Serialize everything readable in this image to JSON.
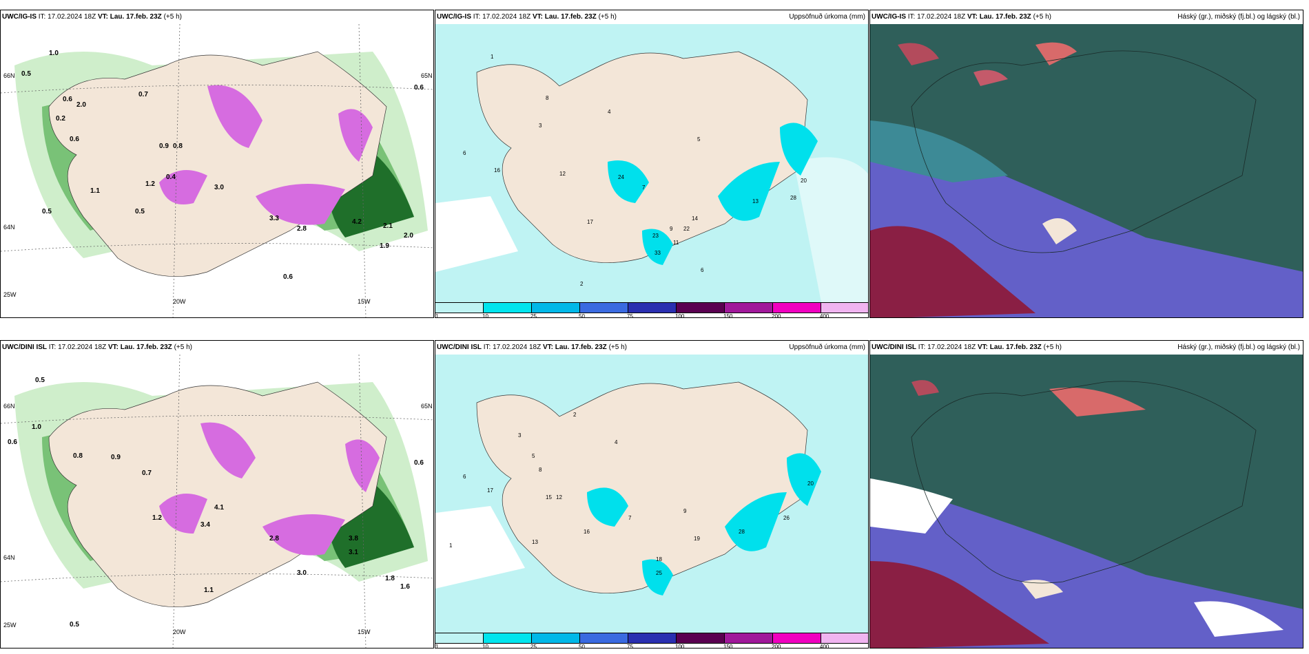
{
  "legend_scale": {
    "ticks": [
      "1",
      "10",
      "25",
      "50",
      "75",
      "100",
      "150",
      "200",
      "400"
    ],
    "colors": [
      "#b8f4f4",
      "#00e5ee",
      "#00b8e8",
      "#3a6ae0",
      "#2a2fb0",
      "#5a0050",
      "#a0189a",
      "#f000c0",
      "#f0b4f0"
    ]
  },
  "colors": {
    "land": "#f3e6d8",
    "precip_light": "#bff3f3",
    "precip_mid": "#00e0ec",
    "green_light": "#cfeecb",
    "green_mid": "#79c277",
    "green_dark": "#1f6f2a",
    "magenta": "#d66ce0",
    "cloud_teal": "#2f5f5a",
    "cloud_blue": "#6360c8",
    "cloud_red": "#8a1f44"
  },
  "panels": [
    {
      "model": "UWC/IG-IS",
      "it_label": "IT:",
      "it_value": "17.02.2024 18Z",
      "vt_label": "VT:",
      "vt_value": "Lau. 17.feb. 23Z",
      "lead": "(+5 h)",
      "right_title": "",
      "axis_labels": [
        "66N",
        "65N",
        "64N",
        "20W",
        "15W",
        "25W"
      ],
      "values": [
        "0.5",
        "0.7",
        "1.0",
        "2.0",
        "0.6",
        "0.2",
        "1.2",
        "0.6",
        "0.9",
        "0.8",
        "3.0",
        "3.3",
        "2.8",
        "4.2",
        "2.1",
        "1.9",
        "2.0",
        "0.6",
        "0.6",
        "0.5",
        "1.1",
        "0.5",
        "0.4"
      ]
    },
    {
      "model": "UWC/IG-IS",
      "it_label": "IT:",
      "it_value": "17.02.2024 18Z",
      "vt_label": "VT:",
      "vt_value": "Lau. 17.feb. 23Z",
      "lead": "(+5 h)",
      "right_title": "Uppsöfnuð úrkoma (mm)",
      "values": [
        "1",
        "3",
        "5",
        "6",
        "8",
        "12",
        "16",
        "17",
        "13",
        "20",
        "24",
        "28",
        "22",
        "11",
        "14",
        "23",
        "33",
        "6",
        "2",
        "9",
        "4",
        "7"
      ]
    },
    {
      "model": "UWC/IG-IS",
      "it_label": "IT:",
      "it_value": "17.02.2024 18Z",
      "vt_label": "VT:",
      "vt_value": "Lau. 17.feb. 23Z",
      "lead": "(+5 h)",
      "right_title": "Háský (gr.), miðský (fj.bl.) og lágský (bl.)"
    },
    {
      "model": "UWC/DINI ISL",
      "it_label": "IT:",
      "it_value": "17.02.2024 18Z",
      "vt_label": "VT:",
      "vt_value": "Lau. 17.feb. 23Z",
      "lead": "(+5 h)",
      "right_title": "",
      "axis_labels": [
        "66N",
        "65N",
        "64N",
        "20W",
        "15W",
        "25W"
      ],
      "values": [
        "0.5",
        "0.6",
        "1.0",
        "0.8",
        "0.9",
        "0.7",
        "3.4",
        "4.1",
        "2.8",
        "3.8",
        "3.1",
        "1.8",
        "3.0",
        "1.6",
        "0.6",
        "1.1",
        "1.2",
        "0.5"
      ]
    },
    {
      "model": "UWC/DINI ISL",
      "it_label": "IT:",
      "it_value": "17.02.2024 18Z",
      "vt_label": "VT:",
      "vt_value": "Lau. 17.feb. 23Z",
      "lead": "(+5 h)",
      "right_title": "Uppsöfnuð úrkoma (mm)",
      "values": [
        "1",
        "2",
        "3",
        "5",
        "6",
        "8",
        "12",
        "13",
        "15",
        "16",
        "17",
        "19",
        "20",
        "25",
        "28",
        "9",
        "4",
        "7",
        "18",
        "26"
      ]
    },
    {
      "model": "UWC/DINI ISL",
      "it_label": "IT:",
      "it_value": "17.02.2024 18Z",
      "vt_label": "VT:",
      "vt_value": "Lau. 17.feb. 23Z",
      "lead": "(+5 h)",
      "right_title": "Háský (gr.), miðský (fj.bl.) og lágský (bl.)"
    }
  ]
}
